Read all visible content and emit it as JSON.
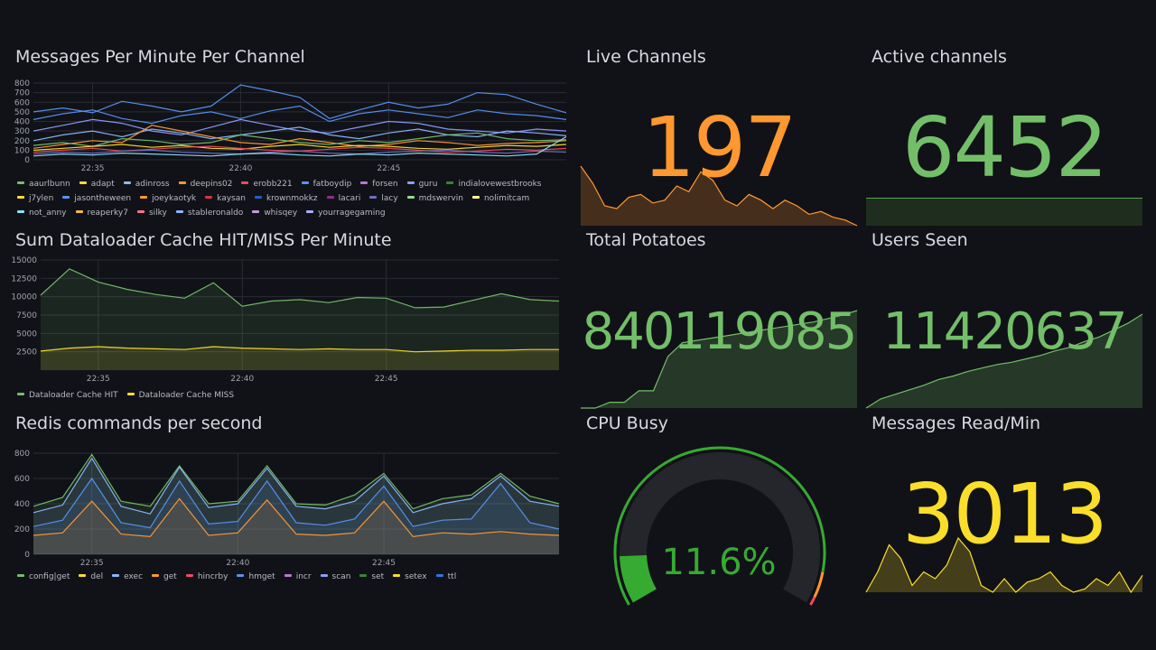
{
  "time_ticks": [
    "22:35",
    "22:40",
    "22:45"
  ],
  "panels": {
    "messages": {
      "title": "Messages Per Minute Per Channel",
      "legend": [
        {
          "name": "aaurlbunn",
          "color": "#73bf69"
        },
        {
          "name": "adapt",
          "color": "#fade2a"
        },
        {
          "name": "adinross",
          "color": "#8ab8ff"
        },
        {
          "name": "deepins02",
          "color": "#ff9830"
        },
        {
          "name": "erobb221",
          "color": "#f2495c"
        },
        {
          "name": "fatboydip",
          "color": "#5794f2"
        },
        {
          "name": "forsen",
          "color": "#b877d9"
        },
        {
          "name": "guru",
          "color": "#8f9bff"
        },
        {
          "name": "indialovewestbrooks",
          "color": "#37872d"
        },
        {
          "name": "j7ylen",
          "color": "#fade2a"
        },
        {
          "name": "jasontheween",
          "color": "#5794f2"
        },
        {
          "name": "joeykaotyk",
          "color": "#ff9830"
        },
        {
          "name": "kaysan",
          "color": "#e02f44"
        },
        {
          "name": "krownmokkz",
          "color": "#1f60c4"
        },
        {
          "name": "lacari",
          "color": "#8e2d8e"
        },
        {
          "name": "lacy",
          "color": "#6c6fbf"
        },
        {
          "name": "mdswervin",
          "color": "#96d98d"
        },
        {
          "name": "nolimitcam",
          "color": "#fff899"
        },
        {
          "name": "not_anny",
          "color": "#8ae2ff"
        },
        {
          "name": "reaperky7",
          "color": "#ffb357"
        },
        {
          "name": "silky",
          "color": "#ff7383"
        },
        {
          "name": "stableronaldo",
          "color": "#8ab8ff"
        },
        {
          "name": "whisqey",
          "color": "#ca95e5"
        },
        {
          "name": "yourragegaming",
          "color": "#a9adff"
        }
      ]
    },
    "dataloader": {
      "title": "Sum Dataloader Cache HIT/MISS Per Minute",
      "legend": [
        {
          "name": "Dataloader Cache HIT",
          "color": "#73bf69"
        },
        {
          "name": "Dataloader Cache MISS",
          "color": "#fade2a"
        }
      ]
    },
    "redis": {
      "title": "Redis commands per second",
      "legend": [
        {
          "name": "config|get",
          "color": "#73bf69"
        },
        {
          "name": "del",
          "color": "#fade2a"
        },
        {
          "name": "exec",
          "color": "#8ab8ff"
        },
        {
          "name": "get",
          "color": "#ff9830"
        },
        {
          "name": "hincrby",
          "color": "#f2495c"
        },
        {
          "name": "hmget",
          "color": "#5794f2"
        },
        {
          "name": "incr",
          "color": "#b877d9"
        },
        {
          "name": "scan",
          "color": "#8f9bff"
        },
        {
          "name": "set",
          "color": "#37872d"
        },
        {
          "name": "setex",
          "color": "#fade2a"
        },
        {
          "name": "ttl",
          "color": "#3274d9"
        }
      ]
    },
    "live": {
      "title": "Live Channels",
      "value": "197",
      "color": "#ff9830"
    },
    "active": {
      "title": "Active channels",
      "value": "6452",
      "color": "#73bf69"
    },
    "potatoes": {
      "title": "Total Potatoes",
      "value": "840119085",
      "color": "#73bf69"
    },
    "users": {
      "title": "Users Seen",
      "value": "11420637",
      "color": "#73bf69"
    },
    "cpu": {
      "title": "CPU Busy",
      "value": "11.6%",
      "percent": 11.6,
      "color": "#37aa32"
    },
    "msgread": {
      "title": "Messages Read/Min",
      "value": "3013",
      "color": "#fade2a"
    }
  },
  "chart_data": [
    {
      "type": "line",
      "title": "Messages Per Minute Per Channel",
      "ylim": [
        0,
        800
      ],
      "yticks": [
        0,
        100,
        200,
        300,
        400,
        500,
        600,
        700,
        800
      ],
      "x": [
        "22:33",
        "22:34",
        "22:35",
        "22:36",
        "22:37",
        "22:38",
        "22:39",
        "22:40",
        "22:41",
        "22:42",
        "22:43",
        "22:44",
        "22:45",
        "22:46",
        "22:47",
        "22:48",
        "22:49",
        "22:50",
        "22:51"
      ],
      "series": [
        {
          "name": "fatboydip",
          "values": [
            500,
            540,
            490,
            610,
            560,
            500,
            560,
            780,
            720,
            650,
            430,
            520,
            600,
            540,
            580,
            700,
            680,
            580,
            490
          ]
        },
        {
          "name": "jasontheween",
          "values": [
            420,
            480,
            520,
            430,
            380,
            460,
            500,
            430,
            510,
            560,
            400,
            480,
            520,
            480,
            440,
            520,
            480,
            460,
            420
          ]
        },
        {
          "name": "guru",
          "values": [
            300,
            360,
            420,
            380,
            300,
            260,
            340,
            420,
            360,
            300,
            280,
            340,
            400,
            380,
            320,
            300,
            280,
            320,
            300
          ]
        },
        {
          "name": "adinross",
          "values": [
            200,
            260,
            300,
            240,
            320,
            280,
            220,
            260,
            300,
            340,
            260,
            220,
            280,
            320,
            260,
            240,
            300,
            280,
            250
          ]
        },
        {
          "name": "deepins02",
          "values": [
            120,
            160,
            200,
            180,
            360,
            300,
            240,
            180,
            160,
            220,
            180,
            140,
            160,
            200,
            180,
            150,
            170,
            180,
            200
          ]
        },
        {
          "name": "aaurlbunn",
          "values": [
            150,
            180,
            140,
            220,
            200,
            160,
            180,
            260,
            220,
            180,
            160,
            200,
            180,
            220,
            260,
            280,
            220,
            200,
            210
          ]
        },
        {
          "name": "adapt",
          "values": [
            100,
            120,
            140,
            160,
            130,
            150,
            120,
            110,
            140,
            160,
            130,
            150,
            140,
            120,
            110,
            130,
            150,
            140,
            160
          ]
        },
        {
          "name": "erobb221",
          "values": [
            80,
            100,
            120,
            90,
            110,
            130,
            140,
            120,
            100,
            90,
            110,
            130,
            120,
            100,
            80,
            90,
            110,
            100,
            120
          ]
        },
        {
          "name": "lacy",
          "values": [
            60,
            80,
            70,
            90,
            100,
            80,
            70,
            60,
            80,
            90,
            70,
            60,
            80,
            90,
            100,
            80,
            70,
            90,
            80
          ]
        },
        {
          "name": "not_anny",
          "values": [
            40,
            60,
            50,
            70,
            60,
            50,
            40,
            60,
            70,
            50,
            40,
            60,
            50,
            70,
            60,
            50,
            40,
            60,
            240
          ]
        }
      ]
    },
    {
      "type": "line",
      "title": "Sum Dataloader Cache HIT/MISS Per Minute",
      "ylim": [
        0,
        15000
      ],
      "yticks": [
        2500,
        5000,
        7500,
        10000,
        12500,
        15000
      ],
      "x": [
        "22:33",
        "22:34",
        "22:35",
        "22:36",
        "22:37",
        "22:38",
        "22:39",
        "22:40",
        "22:41",
        "22:42",
        "22:43",
        "22:44",
        "22:45",
        "22:46",
        "22:47",
        "22:48",
        "22:49",
        "22:50",
        "22:51"
      ],
      "series": [
        {
          "name": "Dataloader Cache HIT",
          "values": [
            10200,
            13800,
            12000,
            11000,
            10300,
            9800,
            11900,
            8700,
            9400,
            9600,
            9200,
            9900,
            9800,
            8500,
            8600,
            9500,
            10400,
            9600,
            9400
          ]
        },
        {
          "name": "Dataloader Cache MISS",
          "values": [
            2600,
            3000,
            3200,
            3000,
            2900,
            2800,
            3200,
            3000,
            2900,
            2800,
            2900,
            2800,
            2800,
            2500,
            2600,
            2700,
            2700,
            2800,
            2800
          ]
        }
      ]
    },
    {
      "type": "area",
      "title": "Redis commands per second",
      "ylim": [
        0,
        800
      ],
      "yticks": [
        0,
        200,
        400,
        600,
        800
      ],
      "x": [
        "22:33",
        "22:34",
        "22:35",
        "22:36",
        "22:37",
        "22:38",
        "22:39",
        "22:40",
        "22:41",
        "22:42",
        "22:43",
        "22:44",
        "22:45",
        "22:46",
        "22:47",
        "22:48",
        "22:49",
        "22:50",
        "22:51"
      ],
      "series": [
        {
          "name": "get",
          "values": [
            150,
            170,
            420,
            160,
            140,
            440,
            150,
            170,
            430,
            160,
            150,
            170,
            420,
            140,
            170,
            160,
            180,
            160,
            150
          ]
        },
        {
          "name": "hmget",
          "values": [
            220,
            270,
            600,
            250,
            210,
            580,
            240,
            260,
            580,
            250,
            230,
            280,
            540,
            220,
            270,
            280,
            560,
            250,
            200
          ]
        },
        {
          "name": "exec",
          "values": [
            330,
            390,
            760,
            380,
            320,
            690,
            370,
            400,
            680,
            380,
            360,
            420,
            620,
            330,
            400,
            440,
            620,
            420,
            380
          ]
        },
        {
          "name": "config|get",
          "values": [
            380,
            450,
            790,
            420,
            380,
            700,
            400,
            420,
            700,
            400,
            390,
            470,
            640,
            360,
            440,
            470,
            640,
            460,
            400
          ]
        }
      ]
    },
    {
      "type": "area",
      "title": "Live Channels",
      "values": [
        260,
        230,
        190,
        185,
        205,
        210,
        195,
        200,
        225,
        215,
        250,
        235,
        200,
        190,
        210,
        200,
        185,
        200,
        190,
        175,
        180,
        170,
        165,
        155
      ]
    },
    {
      "type": "area",
      "title": "Total Potatoes",
      "values": [
        0.05,
        0.05,
        0.1,
        0.1,
        0.2,
        0.2,
        0.5,
        0.62,
        0.64,
        0.66,
        0.68,
        0.7,
        0.72,
        0.74,
        0.76,
        0.78,
        0.8,
        0.83,
        0.86,
        0.9
      ]
    },
    {
      "type": "area",
      "title": "Users Seen",
      "values": [
        0.1,
        0.18,
        0.22,
        0.26,
        0.3,
        0.35,
        0.38,
        0.42,
        0.45,
        0.48,
        0.5,
        0.53,
        0.56,
        0.6,
        0.63,
        0.68,
        0.72,
        0.78,
        0.84,
        0.92
      ]
    },
    {
      "type": "area",
      "title": "Messages Read/Min",
      "values": [
        2800,
        3100,
        3500,
        3300,
        2900,
        3100,
        3000,
        3200,
        3600,
        3400,
        2900,
        2800,
        3000,
        2800,
        2950,
        3000,
        3100,
        2900,
        2800,
        2850,
        3000,
        2900,
        3100,
        2800,
        3050
      ]
    }
  ]
}
